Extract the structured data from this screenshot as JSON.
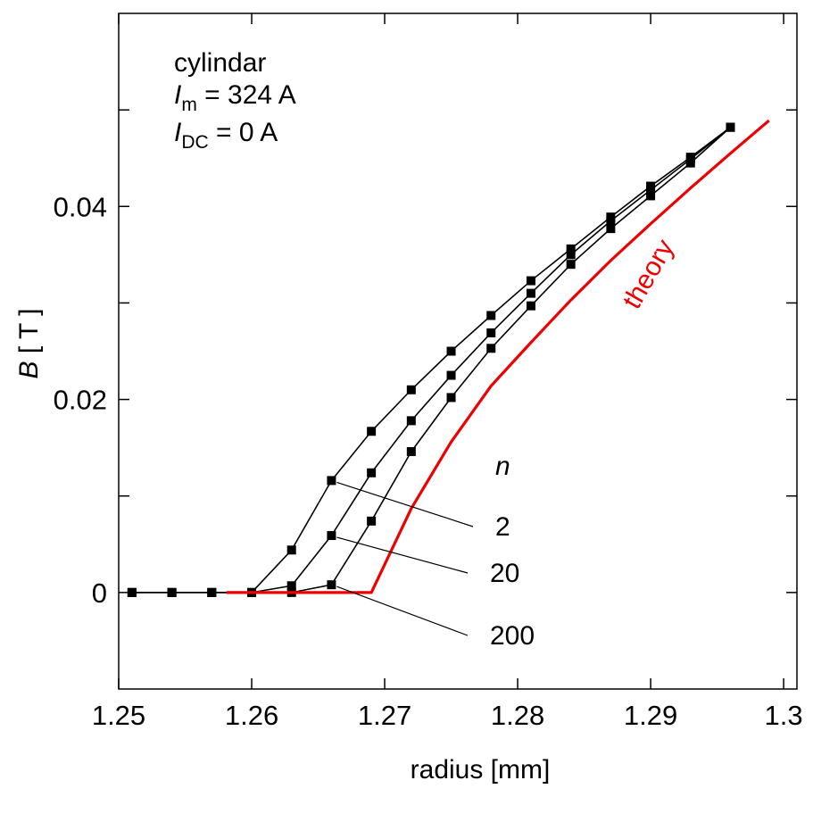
{
  "chart_data": {
    "type": "scatter",
    "xlabel": "radius [mm]",
    "ylabel": {
      "var": "B",
      "unit": "[ T ]"
    },
    "annotations": {
      "title": "cylindar",
      "line1": {
        "var": "I",
        "sub": "m",
        "rest": " = 324 A"
      },
      "line2": {
        "var": "I",
        "sub": "DC",
        "rest": " = 0 A"
      },
      "series_header": "n",
      "theory_label": "theory"
    },
    "xlim": [
      1.25,
      1.301
    ],
    "ylim": [
      -0.01,
      0.06
    ],
    "xticks": [
      1.25,
      1.26,
      1.27,
      1.28,
      1.29,
      1.3
    ],
    "yticks": [
      0,
      0.02,
      0.04
    ],
    "yminor": [
      0.01,
      0.03,
      0.05
    ],
    "series": [
      {
        "name": "2",
        "color": "#000000",
        "markers": true,
        "x": [
          1.251,
          1.254,
          1.257,
          1.26,
          1.263,
          1.266,
          1.269,
          1.272,
          1.275,
          1.278,
          1.281,
          1.284,
          1.287,
          1.29,
          1.293,
          1.296
        ],
        "values": [
          0,
          0,
          0,
          0,
          0.0044,
          0.0116,
          0.0167,
          0.021,
          0.025,
          0.0287,
          0.0323,
          0.0356,
          0.0389,
          0.0421,
          0.0451,
          0.0482
        ]
      },
      {
        "name": "20",
        "color": "#000000",
        "markers": true,
        "x": [
          1.251,
          1.254,
          1.257,
          1.26,
          1.263,
          1.266,
          1.269,
          1.272,
          1.275,
          1.278,
          1.281,
          1.284,
          1.287,
          1.29,
          1.293,
          1.296
        ],
        "values": [
          0,
          0,
          0,
          0,
          0.0007,
          0.0059,
          0.0124,
          0.0178,
          0.0225,
          0.0269,
          0.031,
          0.035,
          0.0385,
          0.0417,
          0.0449,
          0.0482
        ]
      },
      {
        "name": "200",
        "color": "#000000",
        "markers": true,
        "x": [
          1.251,
          1.254,
          1.257,
          1.26,
          1.263,
          1.266,
          1.269,
          1.272,
          1.275,
          1.278,
          1.281,
          1.284,
          1.287,
          1.29,
          1.293,
          1.296
        ],
        "values": [
          0,
          0,
          0,
          0,
          0,
          0.0008,
          0.0074,
          0.0146,
          0.0202,
          0.0253,
          0.0297,
          0.034,
          0.0377,
          0.0411,
          0.0445,
          0.0482
        ]
      },
      {
        "name": "theory",
        "color": "#ee0000",
        "markers": false,
        "x": [
          1.2581,
          1.269,
          1.272,
          1.275,
          1.278,
          1.281,
          1.284,
          1.287,
          1.29,
          1.293,
          1.296,
          1.2989
        ],
        "values": [
          0,
          0,
          0.0087,
          0.0156,
          0.0214,
          0.0259,
          0.0303,
          0.0344,
          0.0382,
          0.0419,
          0.0455,
          0.0489
        ]
      }
    ]
  }
}
